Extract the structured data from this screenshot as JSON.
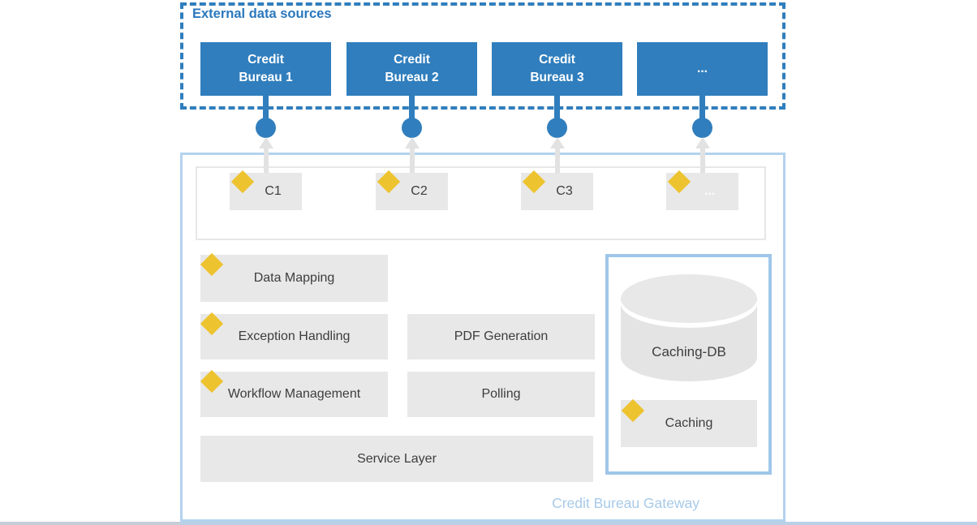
{
  "colors": {
    "primary_blue": "#307ebd",
    "gateway_border_light_blue": "#b3d2ee",
    "caching_panel_border": "#9fc6ea",
    "box_gray": "#e8e8e8",
    "connector_container_border": "#e7e7e7",
    "arrow_gray": "#e2e2e2",
    "diamond_yellow": "#edc32f",
    "text_dark": "#3d3d3d",
    "gateway_label_blue": "#a7cae9"
  },
  "icons": {
    "diamond": "yellow component marker diamond",
    "circle": "blue interface endpoint (lollipop)",
    "arrow": "gray arrow pointing up"
  },
  "external_group": {
    "label": "External data sources",
    "sources": [
      "Credit Bureau 1",
      "Credit Bureau 2",
      "Credit Bureau 3",
      "..."
    ]
  },
  "gateway": {
    "label": "Credit Bureau Gateway",
    "connectors": [
      "C1",
      "C2",
      "C3",
      "..."
    ],
    "components": {
      "data_mapping": "Data Mapping",
      "exception_handling": "Exception Handling",
      "workflow_management": "Workflow Management",
      "pdf_generation": "PDF Generation",
      "polling": "Polling",
      "service_layer": "Service Layer"
    },
    "caching_panel": {
      "db": "Caching-DB",
      "caching": "Caching"
    }
  }
}
